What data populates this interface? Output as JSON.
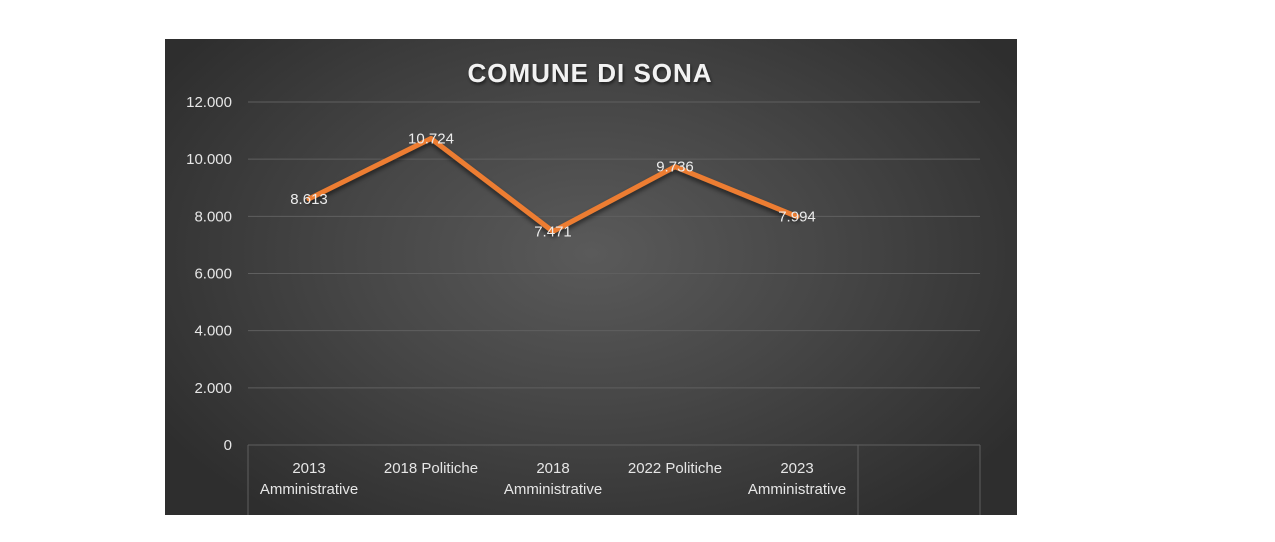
{
  "chart_data": {
    "type": "line",
    "title": "COMUNE DI SONA",
    "xlabel": "",
    "ylabel": "",
    "categories": [
      [
        "2013",
        "Amministrative"
      ],
      [
        "2018 Politiche"
      ],
      [
        "2018",
        "Amministrative"
      ],
      [
        "2022 Politiche"
      ],
      [
        "2023",
        "Amministrative"
      ]
    ],
    "series": [
      {
        "values": [
          8613,
          10724,
          7471,
          9736,
          7994
        ]
      }
    ],
    "data_labels": [
      "8.613",
      "10.724",
      "7.471",
      "9.736",
      "7.994"
    ],
    "y_ticks": [
      {
        "value": 0,
        "label": "0"
      },
      {
        "value": 2000,
        "label": "2.000"
      },
      {
        "value": 4000,
        "label": "4.000"
      },
      {
        "value": 6000,
        "label": "6.000"
      },
      {
        "value": 8000,
        "label": "8.000"
      },
      {
        "value": 10000,
        "label": "10.000"
      },
      {
        "value": 12000,
        "label": "12.000"
      }
    ],
    "ylim": [
      0,
      12000
    ],
    "grid": true,
    "legend": "none",
    "colors": {
      "line": "#ed7d31",
      "gridline": "#5f5f5f",
      "text": "#e6e6e6",
      "background": "#3f3f3f"
    }
  }
}
